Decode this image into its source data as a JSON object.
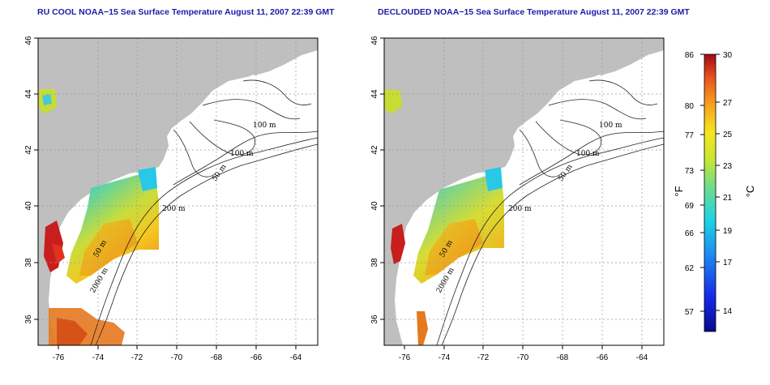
{
  "panels": [
    {
      "title": "RU COOL NOAA−15 Sea Surface Temperature August 11, 2007 22:39 GMT"
    },
    {
      "title": "DECLOUDED NOAA−15 Sea Surface Temperature August 11, 2007 22:39 GMT"
    }
  ],
  "axes": {
    "x_ticks": [
      "-76",
      "-74",
      "-72",
      "-70",
      "-68",
      "-66",
      "-64"
    ],
    "y_ticks": [
      "36",
      "38",
      "40",
      "42",
      "44",
      "46"
    ]
  },
  "contour_labels": [
    "100 m",
    "100 m",
    "50 m",
    "200 m",
    "50 m",
    "2000 m"
  ],
  "colorbar": {
    "fahrenheit_ticks": [
      "86",
      "80",
      "77",
      "73",
      "69",
      "66",
      "62",
      "57"
    ],
    "celsius_ticks": [
      "30",
      "27",
      "25",
      "23",
      "21",
      "19",
      "17",
      "14"
    ],
    "fahrenheit_unit": "°F",
    "celsius_unit": "°C"
  },
  "colors": {
    "title": "#1c1ca8",
    "land": "#bfbfbf",
    "sea": "#ffffff",
    "grid": "#9a9a9a",
    "contour": "#222222"
  }
}
